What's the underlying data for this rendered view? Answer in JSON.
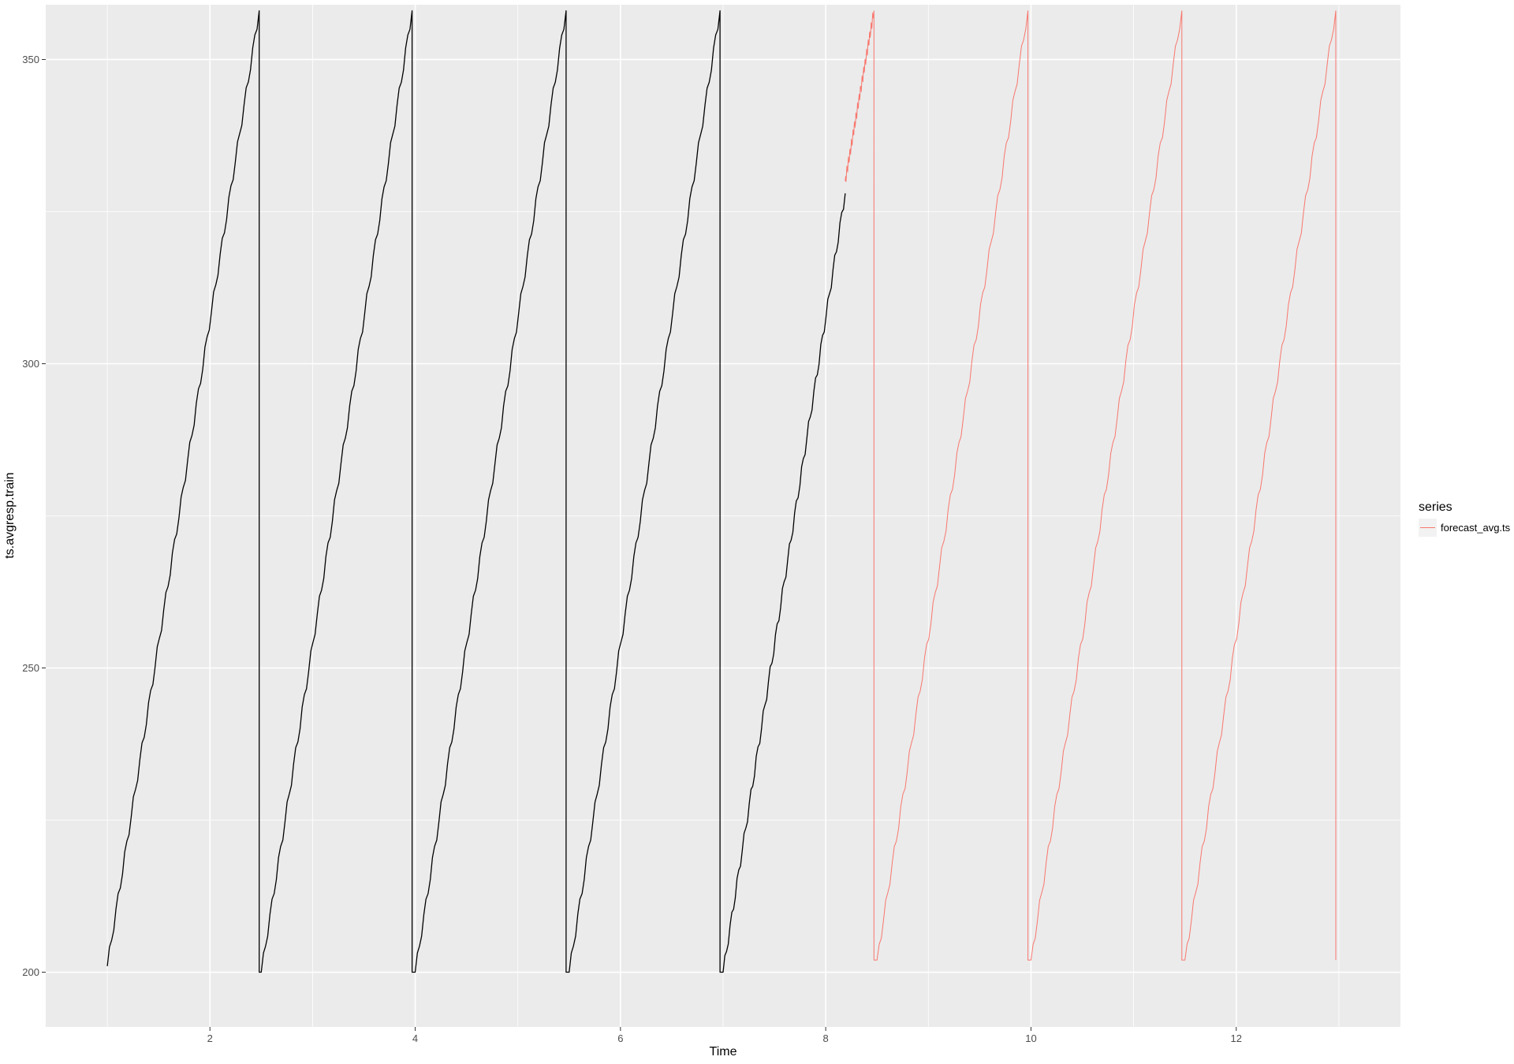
{
  "chart_data": {
    "type": "line",
    "title": "",
    "xlabel": "Time",
    "ylabel": "ts.avgresp.train",
    "xlim": [
      0.4,
      13.6
    ],
    "ylim": [
      191,
      359
    ],
    "x_ticks": [
      2,
      4,
      6,
      8,
      10,
      12
    ],
    "y_ticks": [
      200,
      250,
      300,
      350
    ],
    "grid": true,
    "legend": {
      "title": "series",
      "placement": "right",
      "entries": [
        "forecast_avg.ts"
      ]
    },
    "series": [
      {
        "role": "training",
        "color": "#000000",
        "cycles": [
          {
            "start": [
              1.0,
              201
            ],
            "peak": [
              2.48,
              358
            ],
            "drop_to": [
              2.48,
              200
            ]
          },
          {
            "start": [
              2.5,
              200
            ],
            "peak": [
              3.97,
              358
            ],
            "drop_to": [
              3.97,
              200
            ]
          },
          {
            "start": [
              4.0,
              200
            ],
            "peak": [
              5.47,
              358
            ],
            "drop_to": [
              5.47,
              200
            ]
          },
          {
            "start": [
              5.5,
              200
            ],
            "peak": [
              6.97,
              358
            ],
            "drop_to": [
              6.97,
              200
            ]
          },
          {
            "start": [
              7.0,
              200
            ],
            "peak": [
              8.19,
              328
            ]
          }
        ]
      },
      {
        "name": "forecast_avg.ts",
        "color": "#f8766d",
        "cycles": [
          {
            "start": [
              8.19,
              330
            ],
            "peak": [
              8.47,
              358
            ],
            "drop_to": [
              8.47,
              202
            ]
          },
          {
            "start": [
              8.5,
              202
            ],
            "peak": [
              9.97,
              358
            ],
            "drop_to": [
              9.97,
              202
            ]
          },
          {
            "start": [
              10.0,
              202
            ],
            "peak": [
              11.47,
              358
            ],
            "drop_to": [
              11.47,
              202
            ]
          },
          {
            "start": [
              11.5,
              202
            ],
            "peak": [
              12.97,
              358
            ],
            "drop_to": [
              12.97,
              202
            ]
          }
        ]
      }
    ]
  }
}
